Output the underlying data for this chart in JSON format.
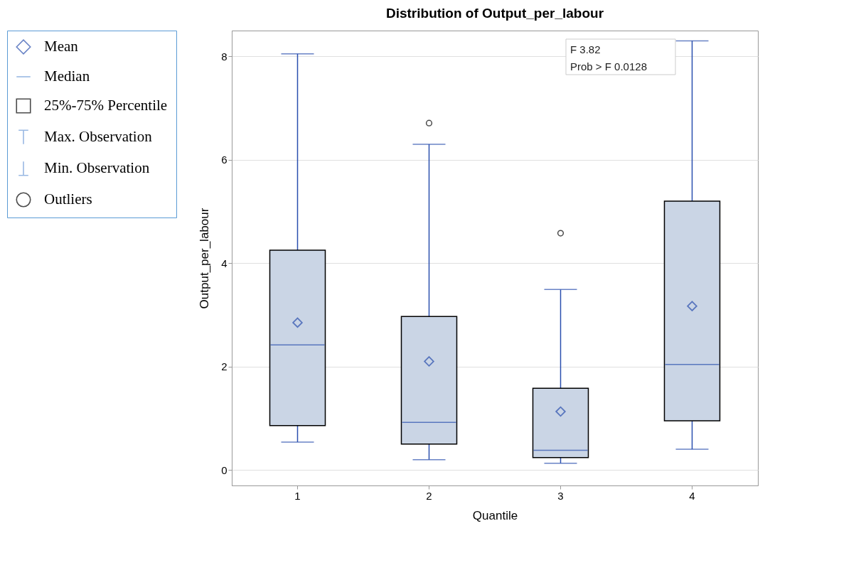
{
  "chart_data": {
    "type": "box",
    "title": "Distribution of Output_per_labour",
    "xlabel": "Quantile",
    "ylabel": "Output_per_labour",
    "categories": [
      "1",
      "2",
      "3",
      "4"
    ],
    "boxes": [
      {
        "low": 0.54,
        "q1": 0.86,
        "median": 2.42,
        "q3": 4.25,
        "high": 8.05,
        "mean": 2.85
      },
      {
        "low": 0.2,
        "q1": 0.5,
        "median": 0.92,
        "q3": 2.97,
        "high": 6.3,
        "mean": 2.1,
        "outliers": [
          6.71
        ]
      },
      {
        "low": 0.13,
        "q1": 0.24,
        "median": 0.38,
        "q3": 1.58,
        "high": 3.49,
        "mean": 1.13,
        "outliers": [
          4.58
        ]
      },
      {
        "low": 0.4,
        "q1": 0.95,
        "median": 2.04,
        "q3": 5.2,
        "high": 8.3,
        "mean": 3.17
      }
    ],
    "ylim": [
      -0.3,
      8.5
    ],
    "yticks": [
      0,
      2,
      4,
      6,
      8
    ],
    "grid": "y",
    "annotations": [
      "Mean",
      "Median",
      "25%-75% Percentile",
      "Max. Observation",
      "Min. Observation",
      "Outliers",
      "F 3.82",
      "Prob > F 0.0128"
    ]
  }
}
